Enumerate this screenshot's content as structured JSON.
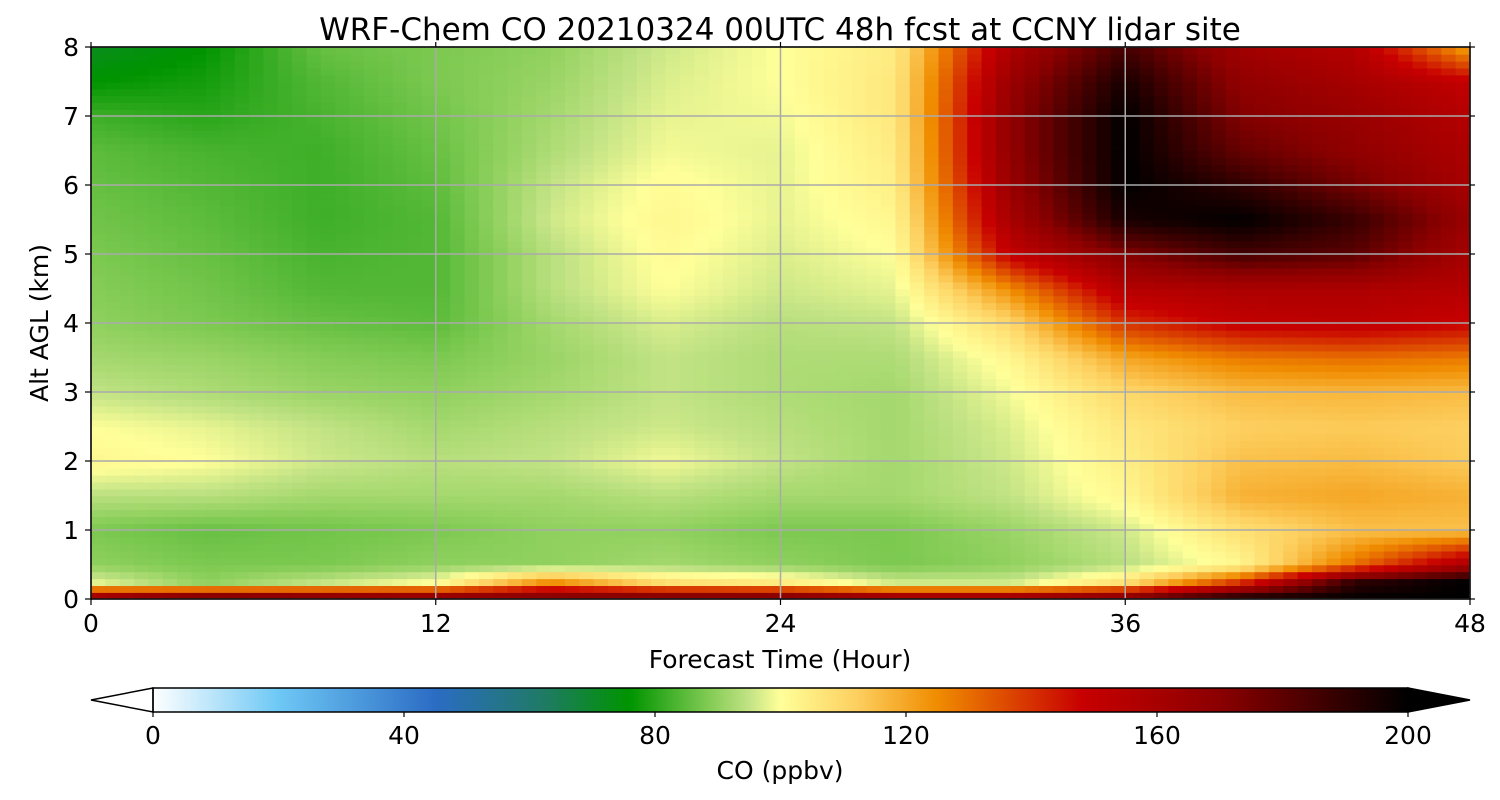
{
  "chart_data": {
    "type": "heatmap",
    "title": "WRF-Chem CO  20210324 00UTC 48h fcst at CCNY lidar site",
    "xlabel": "Forecast Time (Hour)",
    "ylabel": "Alt AGL (km)",
    "xlim": [
      0,
      48
    ],
    "ylim": [
      0,
      8
    ],
    "x_ticks": [
      0,
      12,
      24,
      36,
      48
    ],
    "y_ticks": [
      0,
      1,
      2,
      3,
      4,
      5,
      6,
      7,
      8
    ],
    "grid": true,
    "x_hours": [
      0,
      4,
      8,
      12,
      16,
      20,
      24,
      28,
      32,
      36,
      40,
      44,
      48
    ],
    "y_km": [
      0,
      0.25,
      0.5,
      1,
      1.5,
      2,
      2.5,
      3,
      3.5,
      4,
      4.5,
      5,
      5.5,
      6,
      6.5,
      7,
      7.5,
      8
    ],
    "values_ppbv": [
      [
        175,
        190,
        185,
        180,
        180,
        185,
        185,
        175,
        175,
        180,
        200,
        200,
        200
      ],
      [
        98,
        90,
        95,
        100,
        125,
        108,
        105,
        96,
        96,
        108,
        140,
        190,
        200
      ],
      [
        90,
        88,
        88,
        90,
        90,
        92,
        90,
        88,
        90,
        94,
        102,
        130,
        160
      ],
      [
        88,
        86,
        87,
        88,
        90,
        90,
        88,
        88,
        91,
        96,
        108,
        115,
        115
      ],
      [
        94,
        94,
        92,
        92,
        92,
        94,
        92,
        92,
        95,
        102,
        118,
        120,
        118
      ],
      [
        102,
        100,
        96,
        94,
        95,
        99,
        95,
        92,
        96,
        104,
        115,
        116,
        113
      ],
      [
        100,
        98,
        95,
        92,
        94,
        96,
        94,
        92,
        97,
        106,
        112,
        113,
        112
      ],
      [
        95,
        93,
        91,
        90,
        92,
        95,
        93,
        92,
        99,
        110,
        116,
        117,
        116
      ],
      [
        92,
        91,
        89,
        88,
        91,
        95,
        93,
        93,
        102,
        120,
        128,
        130,
        128
      ],
      [
        90,
        88,
        86,
        85,
        92,
        97,
        94,
        95,
        110,
        140,
        150,
        152,
        148
      ],
      [
        89,
        87,
        84,
        84,
        94,
        100,
        96,
        98,
        125,
        155,
        158,
        158,
        155
      ],
      [
        88,
        86,
        83,
        84,
        94,
        101,
        97,
        100,
        150,
        172,
        185,
        180,
        160
      ],
      [
        87,
        85,
        82,
        84,
        96,
        102,
        98,
        102,
        160,
        195,
        200,
        188,
        165
      ],
      [
        86,
        84,
        82,
        85,
        95,
        101,
        98,
        104,
        165,
        200,
        190,
        175,
        160
      ],
      [
        85,
        83,
        82,
        86,
        93,
        99,
        98,
        105,
        168,
        200,
        178,
        168,
        158
      ],
      [
        82,
        80,
        83,
        87,
        92,
        98,
        99,
        106,
        168,
        200,
        172,
        165,
        155
      ],
      [
        76,
        78,
        84,
        88,
        91,
        97,
        100,
        106,
        165,
        195,
        168,
        160,
        150
      ],
      [
        72,
        76,
        86,
        88,
        90,
        96,
        100,
        105,
        158,
        185,
        162,
        155,
        120
      ]
    ],
    "colorbar": {
      "label": "CO  (ppbv)",
      "range": [
        0,
        200
      ],
      "ticks": [
        0,
        40,
        80,
        120,
        160,
        200
      ],
      "extend": "both"
    },
    "colormap_stops": [
      {
        "v": 0,
        "c": "#ffffff"
      },
      {
        "v": 20,
        "c": "#6ec8f5"
      },
      {
        "v": 45,
        "c": "#2b6cc4"
      },
      {
        "v": 62,
        "c": "#1f7a66"
      },
      {
        "v": 76,
        "c": "#009400"
      },
      {
        "v": 88,
        "c": "#7cc950"
      },
      {
        "v": 95,
        "c": "#c2e384"
      },
      {
        "v": 100,
        "c": "#ffff99"
      },
      {
        "v": 112,
        "c": "#fdd060"
      },
      {
        "v": 125,
        "c": "#f08c00"
      },
      {
        "v": 148,
        "c": "#c80000"
      },
      {
        "v": 170,
        "c": "#8b0000"
      },
      {
        "v": 200,
        "c": "#000000"
      }
    ],
    "grid_color": "#aaaaaa"
  }
}
